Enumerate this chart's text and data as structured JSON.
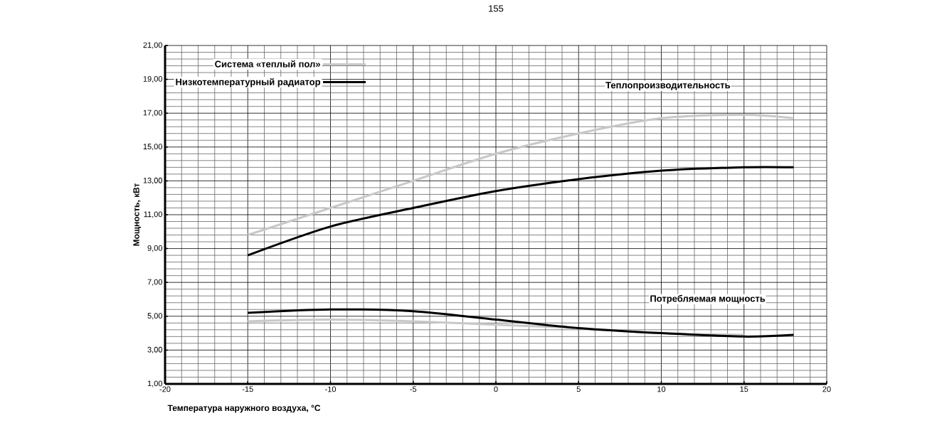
{
  "chart_data": {
    "type": "line",
    "xlabel": "Температура наружного воздуха, °C",
    "ylabel": "Мощность, кВт",
    "xlim": [
      -20,
      20
    ],
    "xticks": [
      -20,
      -15,
      -10,
      -5,
      0,
      5,
      10,
      15,
      20
    ],
    "ylim": [
      1,
      21
    ],
    "yticks": [
      {
        "value": 1,
        "label": "1,00"
      },
      {
        "value": 3,
        "label": "3,00"
      },
      {
        "value": 5,
        "label": "5,00"
      },
      {
        "value": 7,
        "label": "7,00"
      },
      {
        "value": 9,
        "label": "9,00"
      },
      {
        "value": 11,
        "label": "11,00"
      },
      {
        "value": 13,
        "label": "13,00"
      },
      {
        "value": 15,
        "label": "15,00"
      },
      {
        "value": 17,
        "label": "17,00"
      },
      {
        "value": 19,
        "label": "19,00"
      },
      {
        "value": 21,
        "label": "21,00"
      }
    ],
    "grid": true,
    "legend": "top left",
    "marker": "none",
    "line_style": "solid",
    "series": [
      {
        "name": "Система «теплый пол»",
        "color": "#c8c8c8",
        "x": [
          -15,
          -10,
          -5,
          0,
          5,
          10,
          15,
          18
        ],
        "values": [
          9.8,
          11.4,
          13.0,
          14.6,
          15.8,
          16.7,
          16.9,
          16.7
        ]
      },
      {
        "name": "Низкотемпературный радиатор",
        "color": "#000000",
        "x": [
          -15,
          -10,
          -5,
          0,
          5,
          10,
          15,
          18
        ],
        "values": [
          8.6,
          10.3,
          11.4,
          12.4,
          13.1,
          13.6,
          13.8,
          13.8
        ]
      },
      {
        "color": "#c8c8c8",
        "x": [
          -15,
          -10,
          -5,
          0,
          5,
          10,
          15
        ],
        "values": [
          4.7,
          4.8,
          4.7,
          4.5,
          4.3,
          4.0,
          3.9
        ]
      },
      {
        "color": "#000000",
        "x": [
          -15,
          -10,
          -5,
          0,
          5,
          10,
          15,
          18
        ],
        "values": [
          5.2,
          5.4,
          5.3,
          4.8,
          4.3,
          4.0,
          3.8,
          3.9
        ]
      }
    ],
    "annotations": [
      "155",
      "Теплопроизводительность",
      "Потребляемая мощность"
    ]
  }
}
